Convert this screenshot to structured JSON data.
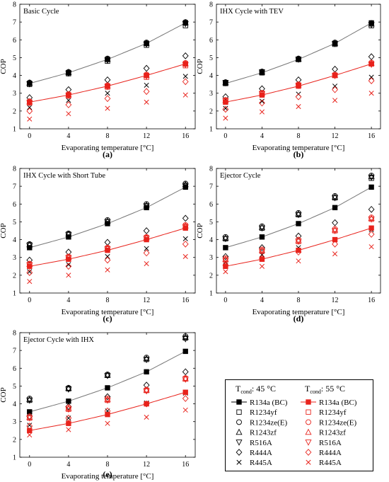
{
  "colors": {
    "t45": "#000000",
    "t55": "#e8231c",
    "fit45": "#777777",
    "fit55": "#e8231c"
  },
  "axes": {
    "xlabel": "Evaporating temperature [°C]",
    "ylabel": "COP",
    "xticks": [
      0,
      4,
      8,
      12,
      16
    ],
    "yticks": [
      1,
      2,
      3,
      4,
      5,
      6,
      7,
      8
    ],
    "xlim": [
      -1,
      17
    ],
    "ylim": [
      1,
      8
    ]
  },
  "legend": {
    "header_45": "T",
    "header_45_sub": "cond",
    "header_45_suffix": ": 45 °C",
    "header_55": "T",
    "header_55_sub": "cond",
    "header_55_suffix": ": 55 °C",
    "entries": [
      {
        "marker": "square-filled-line",
        "label": "R134a (BC)"
      },
      {
        "marker": "square",
        "label": "R1234yf"
      },
      {
        "marker": "circle",
        "label": "R1234ze(E)"
      },
      {
        "marker": "triangle-up",
        "label": "R1243zf"
      },
      {
        "marker": "triangle-down",
        "label": "R516A"
      },
      {
        "marker": "diamond",
        "label": "R444A"
      },
      {
        "marker": "x",
        "label": "R445A"
      }
    ]
  },
  "chart_data": [
    {
      "type": "scatter",
      "panel": "(a)",
      "title": "Basic Cycle",
      "x": [
        0,
        4,
        8,
        12,
        16
      ],
      "series_45": [
        {
          "name": "R134a (BC)",
          "values": [
            3.55,
            4.15,
            4.9,
            5.8,
            6.95
          ]
        },
        {
          "name": "R1234yf",
          "values": [
            3.5,
            4.1,
            4.8,
            5.7,
            6.8
          ]
        },
        {
          "name": "R1234ze(E)",
          "values": [
            3.6,
            4.2,
            4.95,
            5.85,
            7.0
          ]
        },
        {
          "name": "R1243zf",
          "values": [
            3.58,
            4.18,
            4.92,
            5.82,
            6.97
          ]
        },
        {
          "name": "R516A",
          "values": [
            3.52,
            4.12,
            4.85,
            5.75,
            6.9
          ]
        },
        {
          "name": "R444A",
          "values": [
            2.75,
            3.2,
            3.75,
            4.4,
            5.1
          ]
        },
        {
          "name": "R445A",
          "values": [
            2.2,
            2.6,
            3.0,
            3.45,
            3.95
          ]
        }
      ],
      "series_55": [
        {
          "name": "R134a (BC)",
          "values": [
            2.5,
            2.9,
            3.4,
            4.0,
            4.65
          ]
        },
        {
          "name": "R1234yf",
          "values": [
            2.45,
            2.85,
            3.35,
            3.9,
            4.55
          ]
        },
        {
          "name": "R1234ze(E)",
          "values": [
            2.55,
            2.95,
            3.45,
            4.05,
            4.7
          ]
        },
        {
          "name": "R1243zf",
          "values": [
            2.52,
            2.92,
            3.42,
            4.02,
            4.67
          ]
        },
        {
          "name": "R516A",
          "values": [
            2.47,
            2.87,
            3.37,
            3.95,
            4.6
          ]
        },
        {
          "name": "R444A",
          "values": [
            2.0,
            2.35,
            2.7,
            3.1,
            3.65
          ]
        },
        {
          "name": "R445A",
          "values": [
            1.55,
            1.85,
            2.15,
            2.5,
            2.9
          ]
        }
      ]
    },
    {
      "type": "scatter",
      "panel": "(b)",
      "title": "IHX Cycle with TEV",
      "x": [
        0,
        4,
        8,
        12,
        16
      ],
      "series_45": [
        {
          "name": "R134a (BC)",
          "values": [
            3.55,
            4.15,
            4.9,
            5.8,
            6.95
          ]
        },
        {
          "name": "R1234yf",
          "values": [
            3.6,
            4.2,
            4.9,
            5.75,
            6.8
          ]
        },
        {
          "name": "R1234ze(E)",
          "values": [
            3.62,
            4.22,
            4.95,
            5.85,
            6.95
          ]
        },
        {
          "name": "R1243zf",
          "values": [
            3.6,
            4.2,
            4.93,
            5.82,
            6.9
          ]
        },
        {
          "name": "R516A",
          "values": [
            3.58,
            4.18,
            4.9,
            5.78,
            6.85
          ]
        },
        {
          "name": "R444A",
          "values": [
            2.8,
            3.25,
            3.75,
            4.35,
            5.05
          ]
        },
        {
          "name": "R445A",
          "values": [
            2.15,
            2.55,
            2.95,
            3.4,
            3.9
          ]
        }
      ],
      "series_55": [
        {
          "name": "R134a (BC)",
          "values": [
            2.5,
            2.9,
            3.4,
            4.0,
            4.65
          ]
        },
        {
          "name": "R1234yf",
          "values": [
            2.6,
            3.0,
            3.45,
            4.0,
            4.65
          ]
        },
        {
          "name": "R1234ze(E)",
          "values": [
            2.62,
            3.02,
            3.5,
            4.05,
            4.72
          ]
        },
        {
          "name": "R1243zf",
          "values": [
            2.6,
            3.0,
            3.48,
            4.02,
            4.7
          ]
        },
        {
          "name": "R516A",
          "values": [
            2.57,
            2.97,
            3.43,
            3.98,
            4.62
          ]
        },
        {
          "name": "R444A",
          "values": [
            2.1,
            2.45,
            2.8,
            3.2,
            3.7
          ]
        },
        {
          "name": "R445A",
          "values": [
            1.6,
            1.95,
            2.25,
            2.6,
            3.0
          ]
        }
      ]
    },
    {
      "type": "scatter",
      "panel": "(c)",
      "title": "IHX Cycle with Short Tube",
      "x": [
        0,
        4,
        8,
        12,
        16
      ],
      "series_45": [
        {
          "name": "R134a (BC)",
          "values": [
            3.55,
            4.15,
            4.9,
            5.8,
            6.95
          ]
        },
        {
          "name": "R1234yf",
          "values": [
            3.7,
            4.3,
            5.0,
            5.9,
            7.05
          ]
        },
        {
          "name": "R1234ze(E)",
          "values": [
            3.75,
            4.35,
            5.1,
            6.0,
            7.15
          ]
        },
        {
          "name": "R1243zf",
          "values": [
            3.72,
            4.32,
            5.05,
            5.95,
            7.1
          ]
        },
        {
          "name": "R516A",
          "values": [
            3.68,
            4.28,
            5.0,
            5.88,
            7.0
          ]
        },
        {
          "name": "R444A",
          "values": [
            2.85,
            3.3,
            3.85,
            4.5,
            5.2
          ]
        },
        {
          "name": "R445A",
          "values": [
            2.2,
            2.6,
            3.05,
            3.5,
            4.05
          ]
        }
      ],
      "series_55": [
        {
          "name": "R134a (BC)",
          "values": [
            2.5,
            2.9,
            3.4,
            4.0,
            4.65
          ]
        },
        {
          "name": "R1234yf",
          "values": [
            2.6,
            3.0,
            3.5,
            4.1,
            4.75
          ]
        },
        {
          "name": "R1234ze(E)",
          "values": [
            2.65,
            3.05,
            3.55,
            4.15,
            4.82
          ]
        },
        {
          "name": "R1243zf",
          "values": [
            2.62,
            3.02,
            3.52,
            4.12,
            4.78
          ]
        },
        {
          "name": "R516A",
          "values": [
            2.58,
            2.98,
            3.47,
            4.07,
            4.7
          ]
        },
        {
          "name": "R444A",
          "values": [
            2.15,
            2.5,
            2.85,
            3.25,
            3.75
          ]
        },
        {
          "name": "R445A",
          "values": [
            1.65,
            2.0,
            2.3,
            2.65,
            3.05
          ]
        }
      ]
    },
    {
      "type": "scatter",
      "panel": "(d)",
      "title": "Ejector Cycle",
      "x": [
        0,
        4,
        8,
        12,
        16
      ],
      "series_45": [
        {
          "name": "R134a (BC)",
          "values": [
            3.55,
            4.15,
            4.9,
            5.8,
            6.95
          ]
        },
        {
          "name": "R1234yf",
          "values": [
            4.05,
            4.65,
            5.4,
            6.35,
            7.45
          ]
        },
        {
          "name": "R1234ze(E)",
          "values": [
            4.15,
            4.75,
            5.5,
            6.45,
            7.6
          ]
        },
        {
          "name": "R1243zf",
          "values": [
            4.1,
            4.7,
            5.45,
            6.4,
            7.55
          ]
        },
        {
          "name": "R516A",
          "values": [
            4.05,
            4.65,
            5.4,
            6.35,
            7.5
          ]
        },
        {
          "name": "R444A",
          "values": [
            3.05,
            3.55,
            4.2,
            4.95,
            5.7
          ]
        },
        {
          "name": "R445A",
          "values": [
            2.75,
            3.15,
            3.55,
            4.0,
            4.55
          ]
        }
      ],
      "series_55": [
        {
          "name": "R134a (BC)",
          "values": [
            2.5,
            2.9,
            3.4,
            4.0,
            4.65
          ]
        },
        {
          "name": "R1234yf",
          "values": [
            2.85,
            3.35,
            3.9,
            4.5,
            5.15
          ]
        },
        {
          "name": "R1234ze(E)",
          "values": [
            2.95,
            3.45,
            4.0,
            4.6,
            5.25
          ]
        },
        {
          "name": "R1243zf",
          "values": [
            2.9,
            3.4,
            3.95,
            4.55,
            5.2
          ]
        },
        {
          "name": "R516A",
          "values": [
            2.85,
            3.35,
            3.9,
            4.5,
            5.15
          ]
        },
        {
          "name": "R444A",
          "values": [
            2.55,
            2.95,
            3.3,
            3.75,
            4.3
          ]
        },
        {
          "name": "R445A",
          "values": [
            2.2,
            2.5,
            2.8,
            3.2,
            3.6
          ]
        }
      ]
    },
    {
      "type": "scatter",
      "panel": "(e)",
      "title": "Ejector Cycle with IHX",
      "x": [
        0,
        4,
        8,
        12,
        16
      ],
      "series_45": [
        {
          "name": "R134a (BC)",
          "values": [
            3.55,
            4.15,
            4.9,
            5.8,
            6.95
          ]
        },
        {
          "name": "R1234yf",
          "values": [
            4.2,
            4.85,
            5.6,
            6.5,
            7.7
          ]
        },
        {
          "name": "R1234ze(E)",
          "values": [
            4.3,
            4.9,
            5.65,
            6.6,
            7.8
          ]
        },
        {
          "name": "R1243zf",
          "values": [
            4.25,
            4.88,
            5.62,
            6.55,
            7.75
          ]
        },
        {
          "name": "R516A",
          "values": [
            4.2,
            4.82,
            5.58,
            6.48,
            7.65
          ]
        },
        {
          "name": "R444A",
          "values": [
            3.3,
            3.85,
            4.4,
            5.05,
            5.8
          ]
        },
        {
          "name": "R445A",
          "values": [
            2.8,
            3.2,
            3.6,
            4.05,
            4.6
          ]
        }
      ],
      "series_55": [
        {
          "name": "R134a (BC)",
          "values": [
            2.5,
            2.9,
            3.4,
            4.0,
            4.65
          ]
        },
        {
          "name": "R1234yf",
          "values": [
            3.2,
            3.7,
            4.2,
            4.75,
            5.4
          ]
        },
        {
          "name": "R1234ze(E)",
          "values": [
            3.3,
            3.8,
            4.3,
            4.8,
            5.45
          ]
        },
        {
          "name": "R1243zf",
          "values": [
            3.25,
            3.75,
            4.25,
            4.78,
            5.42
          ]
        },
        {
          "name": "R516A",
          "values": [
            3.2,
            3.7,
            4.2,
            4.72,
            5.38
          ]
        },
        {
          "name": "R444A",
          "values": [
            2.75,
            3.2,
            3.6,
            4.0,
            4.3
          ]
        },
        {
          "name": "R445A",
          "values": [
            2.25,
            2.55,
            2.9,
            3.25,
            3.65
          ]
        }
      ]
    }
  ]
}
